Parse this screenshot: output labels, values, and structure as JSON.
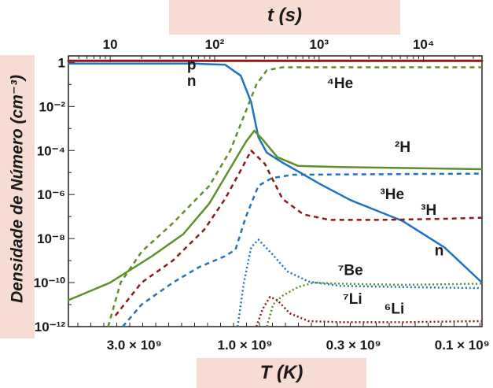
{
  "chart_data": {
    "type": "line",
    "top_axis_title": "t (s)",
    "bottom_axis_title": "T (K)",
    "y_axis_title": "Densidade de Número (cm⁻³)",
    "top_ticks": [
      {
        "value": 10,
        "label": "10"
      },
      {
        "value": 100,
        "label": "10²"
      },
      {
        "value": 1000,
        "label": "10³"
      },
      {
        "value": 10000,
        "label": "10⁴"
      }
    ],
    "bottom_ticks": [
      {
        "label": "3.0 × 10⁹"
      },
      {
        "label": "1.0 × 10⁹"
      },
      {
        "label": "0.3 × 10⁹"
      },
      {
        "label": "0.1 × 10⁹"
      }
    ],
    "y_ticks": [
      {
        "exp": 0,
        "label": "1"
      },
      {
        "exp": -2,
        "label": "10⁻²"
      },
      {
        "exp": -4,
        "label": "10⁻⁴"
      },
      {
        "exp": -6,
        "label": "10⁻⁶"
      },
      {
        "exp": -8,
        "label": "10⁻⁸"
      },
      {
        "exp": -10,
        "label": "10⁻¹⁰"
      },
      {
        "exp": -12,
        "label": "10⁻¹²"
      }
    ],
    "ylim_log10": [
      -12,
      0.3
    ],
    "xlim_log10_t": [
      0.6,
      4.56
    ],
    "series": [
      {
        "name": "p",
        "color": "#8b1a1a",
        "dash": "solid",
        "width": 3,
        "points": [
          [
            0.6,
            0.08
          ],
          [
            4.56,
            0.08
          ]
        ]
      },
      {
        "name": "n",
        "color": "#1f73c0",
        "dash": "solid",
        "width": 2.5,
        "points": [
          [
            0.6,
            -0.05
          ],
          [
            1.8,
            -0.05
          ],
          [
            2.1,
            -0.1
          ],
          [
            2.25,
            -0.6
          ],
          [
            2.35,
            -1.8
          ],
          [
            2.42,
            -3.4
          ],
          [
            2.5,
            -4.1
          ],
          [
            2.65,
            -4.55
          ],
          [
            2.8,
            -4.95
          ],
          [
            3.0,
            -5.5
          ],
          [
            3.3,
            -6.25
          ],
          [
            3.8,
            -7.2
          ],
          [
            4.2,
            -8.4
          ],
          [
            4.56,
            -10.0
          ]
        ]
      },
      {
        "name": "⁴He",
        "color": "#5f8f2a",
        "dash": "6,5",
        "width": 2.5,
        "points": [
          [
            0.98,
            -12
          ],
          [
            1.1,
            -10.0
          ],
          [
            1.3,
            -8.6
          ],
          [
            1.6,
            -7.3
          ],
          [
            1.95,
            -5.6
          ],
          [
            2.15,
            -4.0
          ],
          [
            2.3,
            -2.2
          ],
          [
            2.4,
            -1.0
          ],
          [
            2.5,
            -0.35
          ],
          [
            2.65,
            -0.22
          ],
          [
            4.56,
            -0.22
          ]
        ]
      },
      {
        "name": "²H",
        "color": "#5f8f2a",
        "dash": "solid",
        "width": 2.5,
        "points": [
          [
            0.6,
            -10.8
          ],
          [
            1.0,
            -10.0
          ],
          [
            1.4,
            -8.8
          ],
          [
            1.7,
            -7.8
          ],
          [
            1.95,
            -6.4
          ],
          [
            2.15,
            -4.8
          ],
          [
            2.3,
            -3.6
          ],
          [
            2.38,
            -3.1
          ],
          [
            2.46,
            -3.5
          ],
          [
            2.6,
            -4.3
          ],
          [
            2.8,
            -4.7
          ],
          [
            3.2,
            -4.75
          ],
          [
            4.56,
            -4.85
          ]
        ]
      },
      {
        "name": "³H",
        "color": "#8b1a1a",
        "dash": "6,5",
        "width": 2.5,
        "points": [
          [
            1.05,
            -11.5
          ],
          [
            1.3,
            -10.0
          ],
          [
            1.6,
            -9.0
          ],
          [
            1.9,
            -7.6
          ],
          [
            2.1,
            -6.2
          ],
          [
            2.25,
            -4.9
          ],
          [
            2.35,
            -4.0
          ],
          [
            2.48,
            -4.6
          ],
          [
            2.65,
            -6.2
          ],
          [
            2.85,
            -6.9
          ],
          [
            3.1,
            -7.15
          ],
          [
            3.6,
            -7.15
          ],
          [
            4.2,
            -7.1
          ],
          [
            4.56,
            -7.05
          ]
        ]
      },
      {
        "name": "³He",
        "color": "#1f73c0",
        "dash": "6,5",
        "width": 2.5,
        "points": [
          [
            1.12,
            -12
          ],
          [
            1.3,
            -11.0
          ],
          [
            1.6,
            -10.0
          ],
          [
            1.85,
            -9.3
          ],
          [
            2.1,
            -8.8
          ],
          [
            2.2,
            -8.5
          ],
          [
            2.3,
            -7.0
          ],
          [
            2.42,
            -5.6
          ],
          [
            2.55,
            -5.25
          ],
          [
            2.75,
            -5.1
          ],
          [
            4.56,
            -5.05
          ]
        ]
      },
      {
        "name": "⁷Be",
        "color": "#5f8f2a",
        "dash": "2,3",
        "width": 2.5,
        "points": [
          [
            2.5,
            -12
          ],
          [
            2.56,
            -11.0
          ],
          [
            2.65,
            -10.6
          ],
          [
            2.8,
            -10.2
          ],
          [
            2.95,
            -10.0
          ],
          [
            3.2,
            -10.05
          ],
          [
            3.8,
            -10.1
          ],
          [
            4.56,
            -10.05
          ]
        ]
      },
      {
        "name": "⁷Li",
        "color": "#1f73c0",
        "dash": "2,3",
        "width": 2.5,
        "points": [
          [
            2.22,
            -12
          ],
          [
            2.28,
            -10.0
          ],
          [
            2.35,
            -8.4
          ],
          [
            2.42,
            -8.05
          ],
          [
            2.55,
            -8.7
          ],
          [
            2.7,
            -9.5
          ],
          [
            2.9,
            -9.95
          ],
          [
            3.2,
            -10.15
          ],
          [
            3.8,
            -10.2
          ],
          [
            4.56,
            -10.25
          ]
        ]
      },
      {
        "name": "⁶Li",
        "color": "#8b1a1a",
        "dash": "2,3",
        "width": 2.5,
        "points": [
          [
            2.4,
            -12
          ],
          [
            2.46,
            -11.2
          ],
          [
            2.53,
            -10.65
          ],
          [
            2.6,
            -10.8
          ],
          [
            2.72,
            -11.4
          ],
          [
            2.9,
            -11.75
          ],
          [
            3.2,
            -11.8
          ],
          [
            3.8,
            -11.8
          ],
          [
            4.56,
            -11.75
          ]
        ]
      }
    ],
    "annotations": [
      {
        "text": "p",
        "t_log": 1.78,
        "y": -0.12
      },
      {
        "text": "n",
        "t_log": 1.78,
        "y": -0.85
      },
      {
        "text": "⁴He",
        "t_log": 3.2,
        "y": -0.95
      },
      {
        "text": "²H",
        "t_log": 3.8,
        "y": -3.85
      },
      {
        "text": "³He",
        "t_log": 3.7,
        "y": -6.0
      },
      {
        "text": "³H",
        "t_log": 4.05,
        "y": -6.7
      },
      {
        "text": "n",
        "t_log": 4.15,
        "y": -8.55
      },
      {
        "text": "⁷Be",
        "t_log": 3.3,
        "y": -9.45
      },
      {
        "text": "⁷Li",
        "t_log": 3.32,
        "y": -10.75
      },
      {
        "text": "⁶Li",
        "t_log": 3.72,
        "y": -11.2
      }
    ]
  }
}
